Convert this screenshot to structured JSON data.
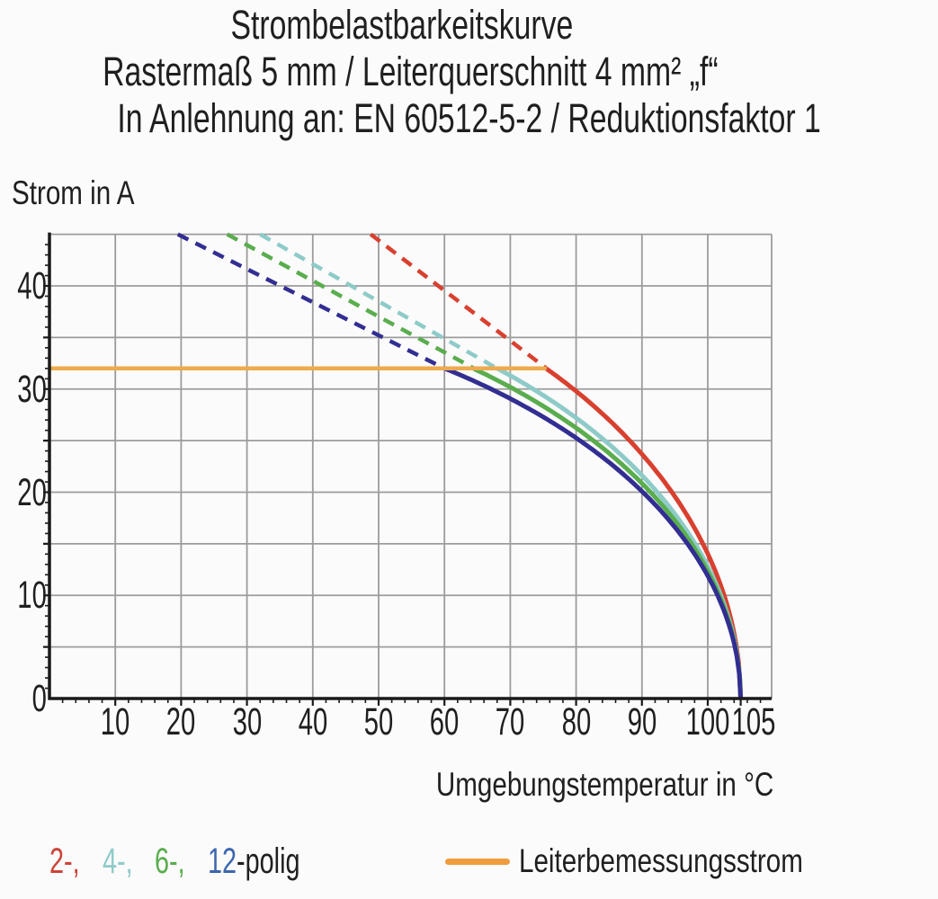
{
  "page": {
    "background": "#fbfbfb",
    "text_color": "#1f1f1f"
  },
  "title": {
    "line1": "Strombelastbarkeitskurve",
    "line2": "Rastermaß 5 mm / Leiterquerschnitt 4 mm² „f“",
    "line3": "In Anlehnung an: EN 60512-5-2 / Reduktionsfaktor 1"
  },
  "axis_labels": {
    "y": "Strom in A",
    "x": "Umgebungstemperatur in °C"
  },
  "legend": {
    "pole_items": [
      {
        "text": "2-,",
        "color": "#cd4337"
      },
      {
        "text": "4-,",
        "color": "#8ecbc8"
      },
      {
        "text": "6-,",
        "color": "#5aad4e"
      },
      {
        "text": "12",
        "color": "#3c66ae"
      }
    ],
    "pole_suffix": "-polig",
    "rated_line_label": "Leiterbemessungsstrom",
    "rated_swatch_color": "#f09c3c"
  },
  "chart_data": {
    "type": "line",
    "title": "Strombelastbarkeitskurve",
    "xlabel": "Umgebungstemperatur in °C",
    "ylabel": "Strom in A",
    "xlim": [
      0,
      110
    ],
    "ylim": [
      0,
      45
    ],
    "x_tick_values": [
      10,
      20,
      30,
      40,
      50,
      60,
      70,
      80,
      90,
      100,
      105
    ],
    "y_tick_values": [
      0,
      10,
      20,
      30,
      40
    ],
    "x_minor_step": 2,
    "y_minor_step": 1,
    "grid": {
      "x_step": 10,
      "y_step": 5,
      "color": "#9c9c9c",
      "axis_color": "#1a1a1a"
    },
    "rated_current_line": {
      "label": "Leiterbemessungsstrom",
      "current_A": 32,
      "temp_range_C": [
        0,
        75.5
      ],
      "color": "#edaa4e"
    },
    "derating_model": "I(T) = I0 * sqrt(1 - (T/105)^2); solid curve below 32 A, dashed extrapolation above 32 A up to 45 A",
    "series": [
      {
        "name": "2-polig",
        "color": "#d8402f",
        "I0": 46.0,
        "solid_from_C": 75.5,
        "zero_at_C": 105,
        "dashed_from": [
          48.8,
          45
        ],
        "dashed_to": [
          75.5,
          32
        ],
        "solid_points": [
          [
            75.5,
            32
          ],
          [
            80,
            29.8
          ],
          [
            85,
            27.0
          ],
          [
            90,
            23.7
          ],
          [
            95,
            19.6
          ],
          [
            100,
            14.0
          ],
          [
            103,
            8.9
          ],
          [
            105,
            0
          ]
        ]
      },
      {
        "name": "4-polig",
        "color": "#8ecbc8",
        "I0": 42.0,
        "solid_from_C": 68,
        "zero_at_C": 105,
        "dashed_from": [
          32,
          45
        ],
        "dashed_to": [
          68,
          32
        ],
        "solid_points": [
          [
            68,
            32
          ],
          [
            70,
            31.3
          ],
          [
            75,
            29.4
          ],
          [
            80,
            27.2
          ],
          [
            85,
            24.7
          ],
          [
            90,
            21.6
          ],
          [
            95,
            17.9
          ],
          [
            100,
            12.8
          ],
          [
            105,
            0
          ]
        ]
      },
      {
        "name": "6-polig",
        "color": "#5aad4e",
        "I0": 40.5,
        "solid_from_C": 64.5,
        "zero_at_C": 105,
        "dashed_from": [
          27,
          45
        ],
        "dashed_to": [
          64.5,
          32
        ],
        "solid_points": [
          [
            64.5,
            32
          ],
          [
            70,
            30.2
          ],
          [
            75,
            28.4
          ],
          [
            80,
            26.2
          ],
          [
            85,
            23.8
          ],
          [
            90,
            20.9
          ],
          [
            95,
            17.3
          ],
          [
            100,
            12.3
          ],
          [
            105,
            0
          ]
        ]
      },
      {
        "name": "12-polig",
        "color": "#322e92",
        "I0": 39.0,
        "solid_from_C": 60,
        "zero_at_C": 105,
        "dashed_from": [
          19.5,
          45
        ],
        "dashed_to": [
          60,
          32
        ],
        "solid_points": [
          [
            60,
            32
          ],
          [
            65,
            30.6
          ],
          [
            70,
            29.1
          ],
          [
            75,
            27.3
          ],
          [
            80,
            25.3
          ],
          [
            85,
            22.9
          ],
          [
            90,
            20.1
          ],
          [
            95,
            16.6
          ],
          [
            100,
            11.9
          ],
          [
            105,
            0
          ]
        ]
      }
    ]
  }
}
